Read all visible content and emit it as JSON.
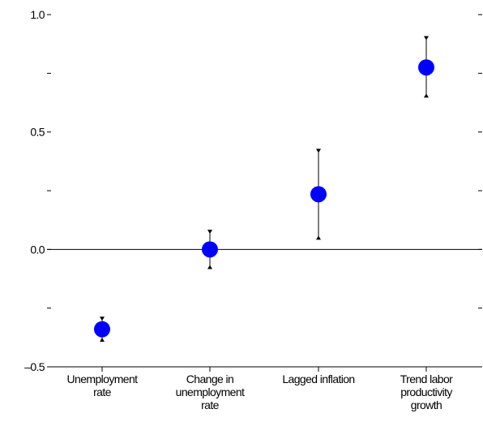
{
  "chart_data": {
    "type": "scatter",
    "title": "",
    "xlabel": "",
    "ylabel": "",
    "ylim": [
      -0.5,
      1.0
    ],
    "yticks": [
      {
        "value": 1.0,
        "label": "1.0"
      },
      {
        "value": 0.75,
        "label": ""
      },
      {
        "value": 0.5,
        "label": "0.5"
      },
      {
        "value": 0.25,
        "label": ""
      },
      {
        "value": 0.0,
        "label": "0.0"
      },
      {
        "value": -0.25,
        "label": ""
      },
      {
        "value": -0.5,
        "label": "–0.5"
      }
    ],
    "zero_line": true,
    "grid": false,
    "marker_color": "#0000ff",
    "error_bar_color": "#000000",
    "categories": [
      [
        "Unemployment",
        "rate"
      ],
      [
        "Change in",
        "unemployment",
        "rate"
      ],
      [
        "Lagged inflation"
      ],
      [
        "Trend labor",
        "productivity",
        "growth"
      ]
    ],
    "points": [
      {
        "value": -0.34,
        "low": -0.39,
        "high": -0.29
      },
      {
        "value": 0.0,
        "low": -0.08,
        "high": 0.08
      },
      {
        "value": 0.235,
        "low": 0.045,
        "high": 0.425
      },
      {
        "value": 0.775,
        "low": 0.65,
        "high": 0.905
      }
    ]
  }
}
